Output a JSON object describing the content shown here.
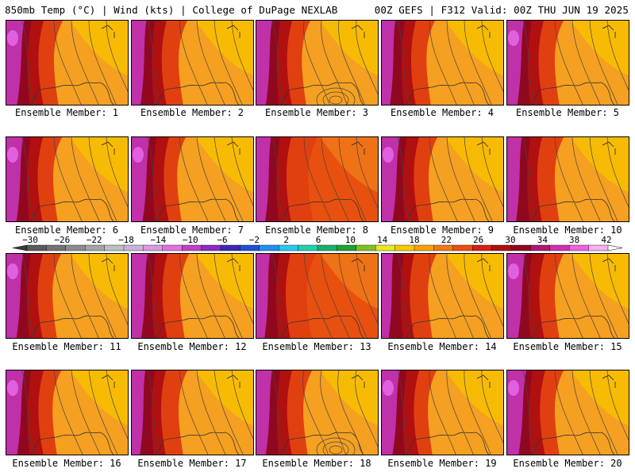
{
  "header": {
    "left": "850mb Temp (°C) | Wind (kts) | College of DuPage NEXLAB",
    "right": "00Z GEFS | F312 Valid: 00Z THU JUN 19 2025"
  },
  "panels": [
    {
      "label": "Ensemble Member: 1",
      "warmth": 0.55,
      "west_cold": 0.9,
      "high": 0.5
    },
    {
      "label": "Ensemble Member: 2",
      "warmth": 0.5,
      "west_cold": 0.6,
      "high": 0.4
    },
    {
      "label": "Ensemble Member: 3",
      "warmth": 0.4,
      "west_cold": 0.7,
      "high": 0.7
    },
    {
      "label": "Ensemble Member: 4",
      "warmth": 0.35,
      "west_cold": 0.5,
      "high": 0.5
    },
    {
      "label": "Ensemble Member: 5",
      "warmth": 0.55,
      "west_cold": 0.8,
      "high": 0.4
    },
    {
      "label": "Ensemble Member: 6",
      "warmth": 0.5,
      "west_cold": 0.8,
      "high": 0.4
    },
    {
      "label": "Ensemble Member: 7",
      "warmth": 0.4,
      "west_cold": 0.9,
      "high": 0.3
    },
    {
      "label": "Ensemble Member: 8",
      "warmth": 0.85,
      "west_cold": 0.6,
      "high": 0.5
    },
    {
      "label": "Ensemble Member: 9",
      "warmth": 0.5,
      "west_cold": 0.9,
      "high": 0.4
    },
    {
      "label": "Ensemble Member: 10",
      "warmth": 0.55,
      "west_cold": 0.6,
      "high": 0.4
    },
    {
      "label": "Ensemble Member: 11",
      "warmth": 0.45,
      "west_cold": 0.8,
      "high": 0.5
    },
    {
      "label": "Ensemble Member: 12",
      "warmth": 0.6,
      "west_cold": 0.7,
      "high": 0.4
    },
    {
      "label": "Ensemble Member: 13",
      "warmth": 0.75,
      "west_cold": 0.5,
      "high": 0.4
    },
    {
      "label": "Ensemble Member: 14",
      "warmth": 0.45,
      "west_cold": 0.3,
      "high": 0.6
    },
    {
      "label": "Ensemble Member: 15",
      "warmth": 0.55,
      "west_cold": 0.9,
      "high": 0.4
    },
    {
      "label": "Ensemble Member: 16",
      "warmth": 0.45,
      "west_cold": 0.9,
      "high": 0.3
    },
    {
      "label": "Ensemble Member: 17",
      "warmth": 0.5,
      "west_cold": 0.5,
      "high": 0.3
    },
    {
      "label": "Ensemble Member: 18",
      "warmth": 0.5,
      "west_cold": 0.7,
      "high": 0.9
    },
    {
      "label": "Ensemble Member: 19",
      "warmth": 0.45,
      "west_cold": 0.9,
      "high": 0.6
    },
    {
      "label": "Ensemble Member: 20",
      "warmth": 0.55,
      "west_cold": 1.0,
      "high": 0.4
    }
  ],
  "colorbar": {
    "tick_labels": [
      "−30",
      "−26",
      "−22",
      "−18",
      "−14",
      "−10",
      "−6",
      "−2",
      "2",
      "6",
      "10",
      "14",
      "18",
      "22",
      "26",
      "30",
      "34",
      "38",
      "42"
    ],
    "colors": [
      "#5a5a5a",
      "#737373",
      "#8c8c8c",
      "#a5a5a5",
      "#bfbfbf",
      "#c8b4d8",
      "#d99be0",
      "#e070e0",
      "#c040c8",
      "#8a2cc0",
      "#3c28b4",
      "#2050d8",
      "#1e90f0",
      "#28c8f0",
      "#20d0b0",
      "#18b070",
      "#20a030",
      "#80c020",
      "#e8e820",
      "#f8c800",
      "#f8a000",
      "#f07818",
      "#e85010",
      "#d82010",
      "#b01010",
      "#900820",
      "#b01870",
      "#d030b0",
      "#f060e0",
      "#f8b0f0"
    ]
  }
}
